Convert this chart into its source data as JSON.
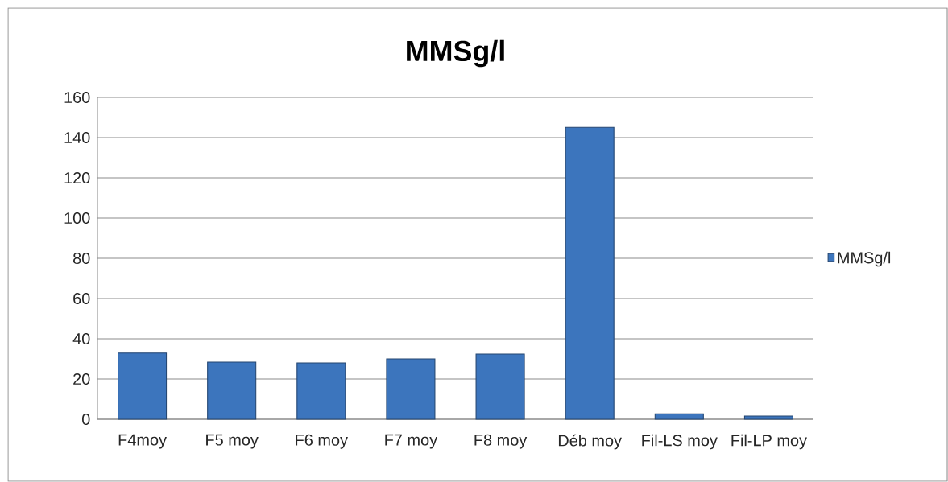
{
  "chart_data": {
    "type": "bar",
    "title": "MMSg/l",
    "categories": [
      "F4moy",
      "F5 moy",
      "F6 moy",
      "F7 moy",
      "F8 moy",
      "Déb moy",
      "Fil-LS moy",
      "Fil-LP moy"
    ],
    "series": [
      {
        "name": "MMSg/l",
        "color": "#3c75bd",
        "values": [
          32.9,
          28.4,
          28.0,
          30.0,
          32.4,
          145.1,
          2.7,
          1.6
        ]
      }
    ],
    "ylim": [
      0,
      160
    ],
    "yticks": [
      0,
      20,
      40,
      60,
      80,
      100,
      120,
      140,
      160
    ],
    "grid": "y",
    "legend": "right"
  }
}
